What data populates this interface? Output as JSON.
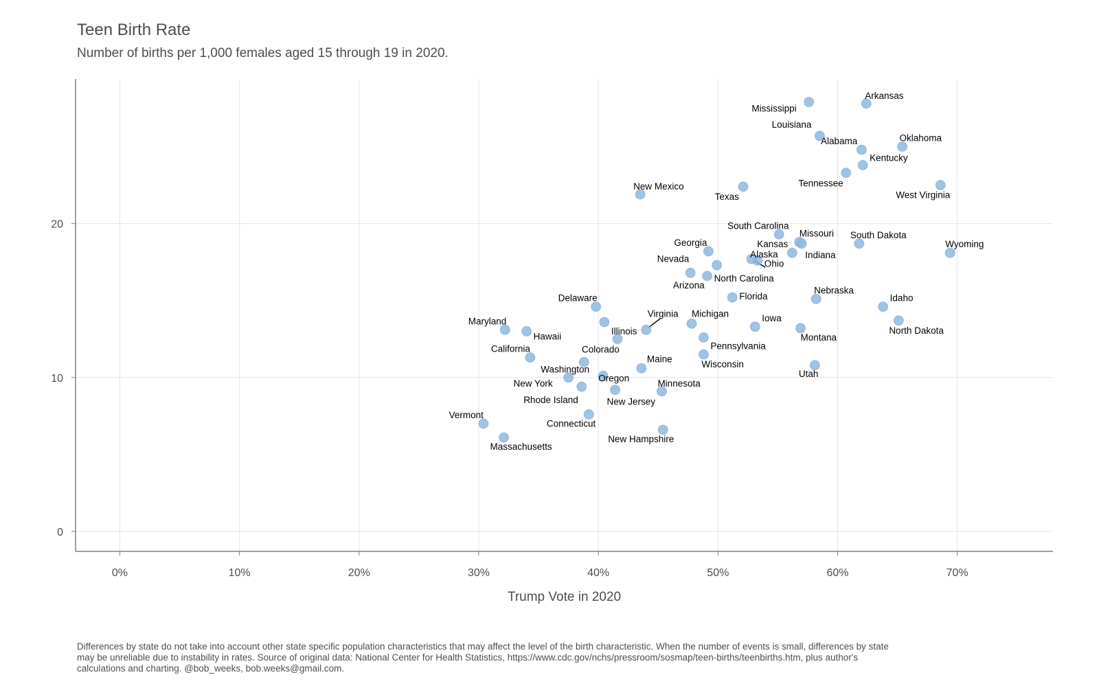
{
  "title": "Teen Birth Rate",
  "subtitle": "Number of births per 1,000 females aged 15 through 19 in 2020.",
  "caption": "Differences by state do not take into account other state specific population characteristics that may affect the level of the birth characteristic. When the number of events is small, differences by state may be unreliable due to instability in rates. Source of original data: National Center for Health Statistics, https://www.cdc.gov/nchs/pressroom/sosmap/teen-births/teenbirths.htm, plus author's calculations and charting. @bob_weeks, bob.weeks@gmail.com.",
  "colors": {
    "point": "#8fb8de",
    "grid": "#e5e5e5",
    "axis": "#7f7f7f"
  },
  "chart_data": {
    "type": "scatter",
    "xlabel": "Trump Vote in 2020",
    "ylabel": "",
    "xlim": [
      -0.037,
      0.78
    ],
    "ylim": [
      -1.3,
      29.4
    ],
    "x_ticks": [
      0,
      0.1,
      0.2,
      0.3,
      0.4,
      0.5,
      0.6,
      0.7
    ],
    "x_tick_labels": [
      "0%",
      "10%",
      "20%",
      "30%",
      "40%",
      "50%",
      "60%",
      "70%"
    ],
    "y_ticks": [
      0,
      10,
      20
    ],
    "y_tick_labels": [
      "0",
      "10",
      "20"
    ],
    "grid": true,
    "points": [
      {
        "label": "Mississippi",
        "x": 0.576,
        "y": 27.9
      },
      {
        "label": "Arkansas",
        "x": 0.624,
        "y": 27.8
      },
      {
        "label": "Louisiana",
        "x": 0.585,
        "y": 25.7
      },
      {
        "label": "Oklahoma",
        "x": 0.654,
        "y": 25.0
      },
      {
        "label": "Alabama",
        "x": 0.62,
        "y": 24.8
      },
      {
        "label": "Kentucky",
        "x": 0.621,
        "y": 23.8
      },
      {
        "label": "Tennessee",
        "x": 0.607,
        "y": 23.3
      },
      {
        "label": "West Virginia",
        "x": 0.686,
        "y": 22.5
      },
      {
        "label": "Texas",
        "x": 0.521,
        "y": 22.4
      },
      {
        "label": "New Mexico",
        "x": 0.435,
        "y": 21.9
      },
      {
        "label": "South Carolina",
        "x": 0.551,
        "y": 19.3
      },
      {
        "label": "Missouri",
        "x": 0.568,
        "y": 18.8
      },
      {
        "label": "Indiana",
        "x": 0.57,
        "y": 18.7
      },
      {
        "label": "South Dakota",
        "x": 0.618,
        "y": 18.7
      },
      {
        "label": "Georgia",
        "x": 0.492,
        "y": 18.2
      },
      {
        "label": "Kansas",
        "x": 0.562,
        "y": 18.1
      },
      {
        "label": "Wyoming",
        "x": 0.694,
        "y": 18.1
      },
      {
        "label": "Ohio",
        "x": 0.533,
        "y": 17.6
      },
      {
        "label": "Alaska",
        "x": 0.528,
        "y": 17.7
      },
      {
        "label": "North Carolina",
        "x": 0.499,
        "y": 17.3
      },
      {
        "label": "Nevada",
        "x": 0.477,
        "y": 16.8
      },
      {
        "label": "Arizona",
        "x": 0.491,
        "y": 16.6
      },
      {
        "label": "Florida",
        "x": 0.512,
        "y": 15.2
      },
      {
        "label": "Nebraska",
        "x": 0.582,
        "y": 15.1
      },
      {
        "label": "Delaware",
        "x": 0.398,
        "y": 14.6
      },
      {
        "label": "Idaho",
        "x": 0.638,
        "y": 14.6
      },
      {
        "label": "North Dakota",
        "x": 0.651,
        "y": 13.7
      },
      {
        "label": "Illinois",
        "x": 0.405,
        "y": 13.6
      },
      {
        "label": "Michigan",
        "x": 0.478,
        "y": 13.5
      },
      {
        "label": "Iowa",
        "x": 0.531,
        "y": 13.3
      },
      {
        "label": "Montana",
        "x": 0.569,
        "y": 13.2
      },
      {
        "label": "Maryland",
        "x": 0.322,
        "y": 13.1
      },
      {
        "label": "Virginia",
        "x": 0.44,
        "y": 13.1
      },
      {
        "label": "Hawaii",
        "x": 0.34,
        "y": 13.0
      },
      {
        "label": "Pennsylvania",
        "x": 0.488,
        "y": 12.6
      },
      {
        "label": "Colorado",
        "x": 0.416,
        "y": 12.5
      },
      {
        "label": "Wisconsin",
        "x": 0.488,
        "y": 11.5
      },
      {
        "label": "California",
        "x": 0.343,
        "y": 11.3
      },
      {
        "label": "Washington",
        "x": 0.388,
        "y": 11.0
      },
      {
        "label": "Utah",
        "x": 0.581,
        "y": 10.8
      },
      {
        "label": "Maine",
        "x": 0.436,
        "y": 10.6
      },
      {
        "label": "Oregon",
        "x": 0.404,
        "y": 10.1
      },
      {
        "label": "New York",
        "x": 0.375,
        "y": 10.0
      },
      {
        "label": "Rhode Island",
        "x": 0.386,
        "y": 9.4
      },
      {
        "label": "New Jersey",
        "x": 0.414,
        "y": 9.2
      },
      {
        "label": "Minnesota",
        "x": 0.453,
        "y": 9.1
      },
      {
        "label": "Connecticut",
        "x": 0.392,
        "y": 7.6
      },
      {
        "label": "Vermont",
        "x": 0.304,
        "y": 7.0
      },
      {
        "label": "New Hampshire",
        "x": 0.454,
        "y": 6.6
      },
      {
        "label": "Massachusetts",
        "x": 0.321,
        "y": 6.1
      }
    ]
  }
}
